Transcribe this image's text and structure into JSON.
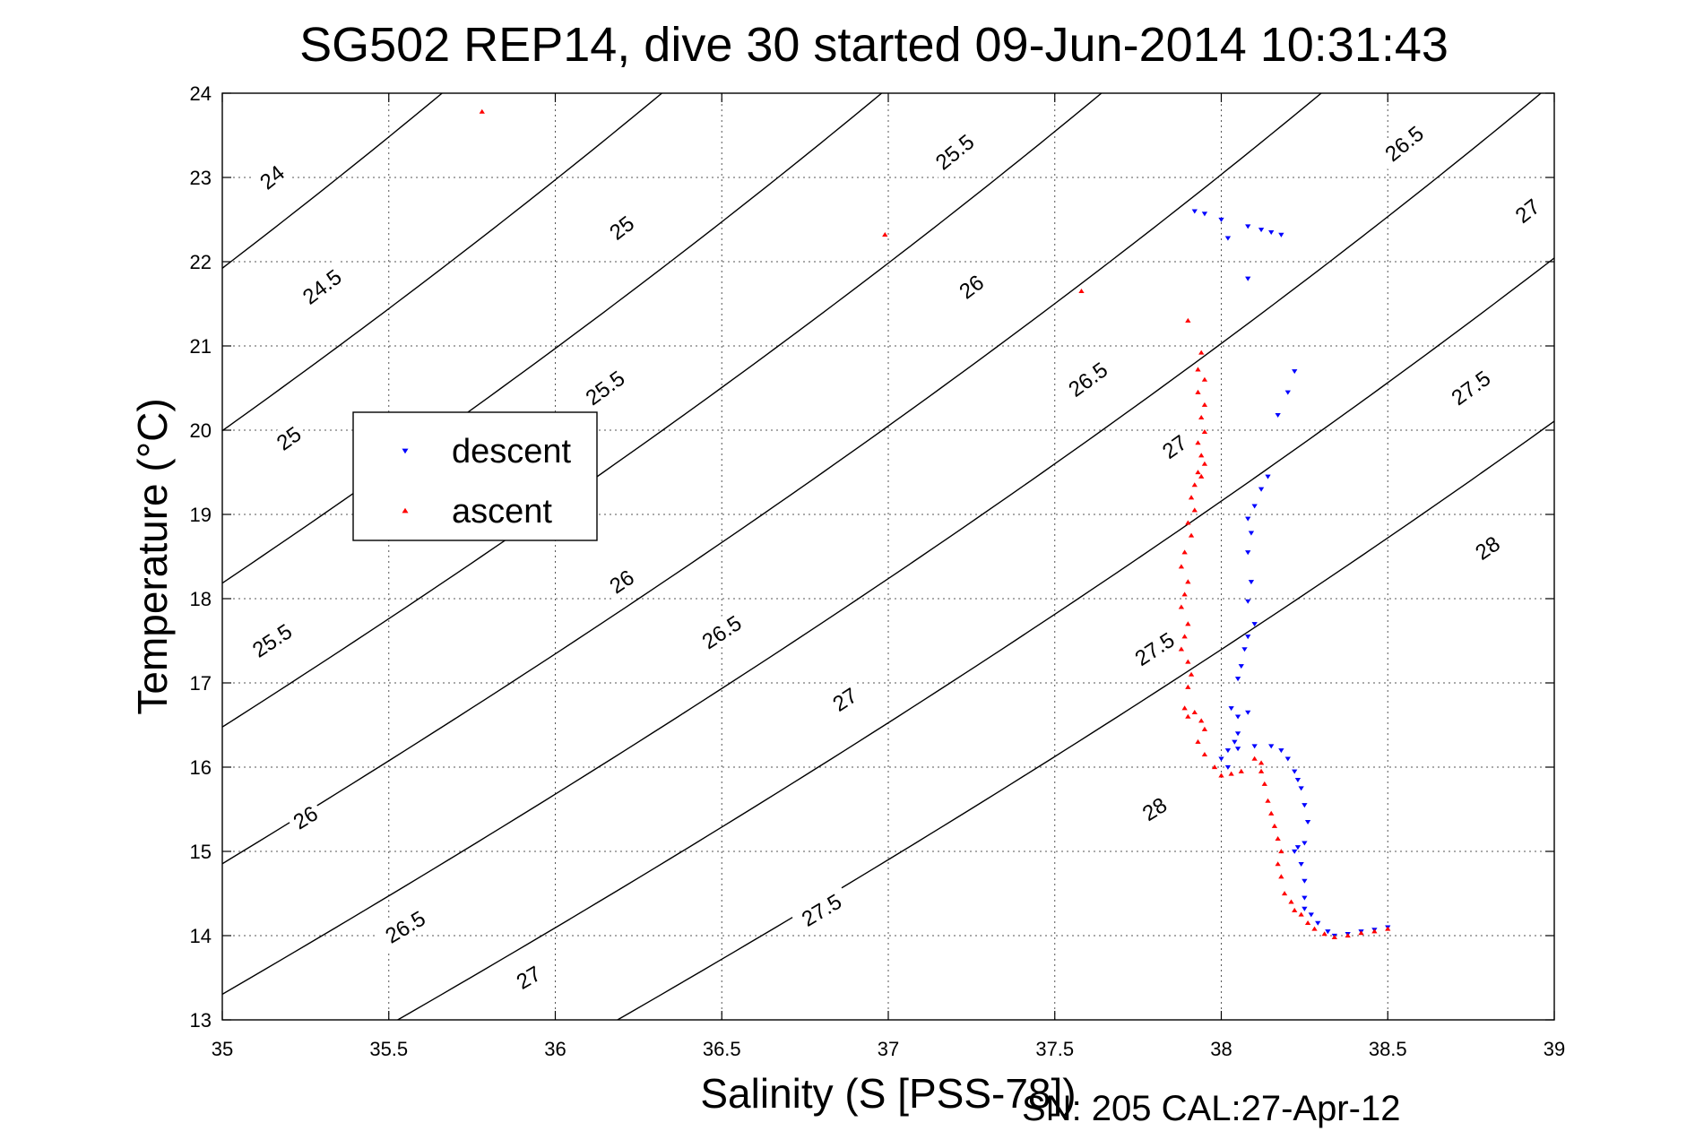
{
  "chart_data": {
    "type": "scatter",
    "title": "SG502 REP14, dive 30 started 09-Jun-2014 10:31:43",
    "xlabel": "Salinity (S [PSS-78])",
    "ylabel": "Temperature (°C)",
    "xlim": [
      35,
      39
    ],
    "ylim": [
      13,
      24
    ],
    "xticks": [
      "35",
      "35.5",
      "36",
      "36.5",
      "37",
      "37.5",
      "38",
      "38.5",
      "39"
    ],
    "yticks": [
      "13",
      "14",
      "15",
      "16",
      "17",
      "18",
      "19",
      "20",
      "21",
      "22",
      "23",
      "24"
    ],
    "grid": true,
    "legend_position": "left-center",
    "footer": "SN: 205  CAL:27-Apr-12",
    "isopycnals": [
      {
        "label": "24",
        "label_text": "24",
        "s_at_T24": 35.0,
        "label_pos": [
          35.15,
          23.0
        ]
      },
      {
        "label": "24.5",
        "label_text": "24.5",
        "s_at_T24": 35.66,
        "label_pos": [
          35.3,
          21.7
        ]
      },
      {
        "label": "25",
        "label_text": "25",
        "s_at_T24": 36.32,
        "label_pos": [
          35.2,
          19.9
        ]
      },
      {
        "label": "25",
        "label_text": "25",
        "s_at_T24": 36.32,
        "label_pos": [
          36.2,
          22.4
        ]
      },
      {
        "label": "25.5",
        "label_text": "25.5",
        "s_at_T24": 36.98,
        "label_pos": [
          35.15,
          17.5
        ]
      },
      {
        "label": "25.5",
        "label_text": "25.5",
        "s_at_T24": 36.98,
        "label_pos": [
          36.15,
          20.5
        ]
      },
      {
        "label": "25.5",
        "label_text": "25.5",
        "s_at_T24": 36.98,
        "label_pos": [
          37.2,
          23.3
        ]
      },
      {
        "label": "26",
        "label_text": "26",
        "s_at_T24": 37.64,
        "label_pos": [
          35.25,
          15.4
        ]
      },
      {
        "label": "26",
        "label_text": "26",
        "s_at_T24": 37.64,
        "label_pos": [
          36.2,
          18.2
        ]
      },
      {
        "label": "26",
        "label_text": "26",
        "s_at_T24": 37.64,
        "label_pos": [
          37.25,
          21.7
        ]
      },
      {
        "label": "26.5",
        "label_text": "26.5",
        "s_at_T24": 38.3,
        "label_pos": [
          35.55,
          14.1
        ]
      },
      {
        "label": "26.5",
        "label_text": "26.5",
        "s_at_T24": 38.3,
        "label_pos": [
          36.5,
          17.6
        ]
      },
      {
        "label": "26.5",
        "label_text": "26.5",
        "s_at_T24": 38.3,
        "label_pos": [
          37.6,
          20.6
        ]
      },
      {
        "label": "26.5",
        "label_text": "26.5",
        "s_at_T24": 38.3,
        "label_pos": [
          38.55,
          23.4
        ]
      },
      {
        "label": "27",
        "label_text": "27",
        "s_at_T24": 38.96,
        "label_pos": [
          35.92,
          13.5
        ]
      },
      {
        "label": "27",
        "label_text": "27",
        "s_at_T24": 38.96,
        "label_pos": [
          36.87,
          16.8
        ]
      },
      {
        "label": "27",
        "label_text": "27",
        "s_at_T24": 38.96,
        "label_pos": [
          37.86,
          19.8
        ]
      },
      {
        "label": "27",
        "label_text": "27",
        "s_at_T24": 38.96,
        "label_pos": [
          38.92,
          22.6
        ]
      },
      {
        "label": "27.5",
        "label_text": "27.5",
        "s_at_T24": 39.62,
        "label_pos": [
          36.8,
          14.3
        ]
      },
      {
        "label": "27.5",
        "label_text": "27.5",
        "s_at_T24": 39.62,
        "label_pos": [
          37.8,
          17.4
        ]
      },
      {
        "label": "27.5",
        "label_text": "27.5",
        "s_at_T24": 39.62,
        "label_pos": [
          38.75,
          20.5
        ]
      },
      {
        "label": "28",
        "label_text": "28",
        "s_at_T24": 40.28,
        "label_pos": [
          37.8,
          15.5
        ]
      },
      {
        "label": "28",
        "label_text": "28",
        "s_at_T24": 40.28,
        "label_pos": [
          38.8,
          18.6
        ]
      }
    ],
    "series": [
      {
        "name": "descent",
        "color": "#0000ff",
        "marker": "triangle-down",
        "points": [
          [
            37.92,
            22.6
          ],
          [
            37.95,
            22.57
          ],
          [
            38.0,
            22.5
          ],
          [
            38.08,
            22.42
          ],
          [
            38.02,
            22.28
          ],
          [
            38.12,
            22.38
          ],
          [
            38.15,
            22.35
          ],
          [
            38.18,
            22.32
          ],
          [
            38.08,
            21.8
          ],
          [
            38.22,
            20.7
          ],
          [
            38.2,
            20.45
          ],
          [
            38.17,
            20.18
          ],
          [
            38.14,
            19.45
          ],
          [
            38.12,
            19.3
          ],
          [
            38.1,
            19.1
          ],
          [
            38.08,
            18.95
          ],
          [
            38.09,
            18.78
          ],
          [
            38.08,
            18.55
          ],
          [
            38.09,
            18.2
          ],
          [
            38.08,
            17.97
          ],
          [
            38.1,
            17.7
          ],
          [
            38.08,
            17.55
          ],
          [
            38.07,
            17.4
          ],
          [
            38.06,
            17.2
          ],
          [
            38.05,
            17.05
          ],
          [
            38.03,
            16.7
          ],
          [
            38.05,
            16.6
          ],
          [
            38.08,
            16.65
          ],
          [
            38.05,
            16.4
          ],
          [
            38.04,
            16.3
          ],
          [
            38.02,
            16.2
          ],
          [
            38.0,
            16.1
          ],
          [
            38.02,
            16.0
          ],
          [
            38.05,
            16.22
          ],
          [
            38.1,
            16.25
          ],
          [
            38.15,
            16.25
          ],
          [
            38.18,
            16.2
          ],
          [
            38.2,
            16.1
          ],
          [
            38.22,
            15.95
          ],
          [
            38.23,
            15.85
          ],
          [
            38.24,
            15.75
          ],
          [
            38.25,
            15.55
          ],
          [
            38.26,
            15.35
          ],
          [
            38.25,
            15.1
          ],
          [
            38.23,
            15.05
          ],
          [
            38.22,
            15.0
          ],
          [
            38.24,
            14.85
          ],
          [
            38.25,
            14.65
          ],
          [
            38.25,
            14.45
          ],
          [
            38.25,
            14.32
          ],
          [
            38.27,
            14.25
          ],
          [
            38.29,
            14.15
          ],
          [
            38.32,
            14.05
          ],
          [
            38.34,
            14.0
          ],
          [
            38.38,
            14.02
          ],
          [
            38.42,
            14.05
          ],
          [
            38.46,
            14.07
          ],
          [
            38.5,
            14.1
          ]
        ]
      },
      {
        "name": "ascent",
        "color": "#ff0000",
        "marker": "triangle-up",
        "points": [
          [
            35.78,
            23.78
          ],
          [
            36.99,
            22.32
          ],
          [
            37.58,
            21.65
          ],
          [
            37.9,
            21.3
          ],
          [
            37.94,
            20.92
          ],
          [
            37.93,
            20.72
          ],
          [
            37.95,
            20.6
          ],
          [
            37.93,
            20.45
          ],
          [
            37.95,
            20.3
          ],
          [
            37.94,
            20.15
          ],
          [
            37.95,
            19.98
          ],
          [
            37.93,
            19.85
          ],
          [
            37.94,
            19.7
          ],
          [
            37.95,
            19.6
          ],
          [
            37.93,
            19.5
          ],
          [
            37.94,
            19.45
          ],
          [
            37.92,
            19.35
          ],
          [
            37.91,
            19.2
          ],
          [
            37.92,
            19.05
          ],
          [
            37.9,
            18.9
          ],
          [
            37.91,
            18.75
          ],
          [
            37.89,
            18.55
          ],
          [
            37.88,
            18.38
          ],
          [
            37.9,
            18.2
          ],
          [
            37.89,
            18.05
          ],
          [
            37.88,
            17.9
          ],
          [
            37.9,
            17.7
          ],
          [
            37.89,
            17.55
          ],
          [
            37.88,
            17.4
          ],
          [
            37.9,
            17.25
          ],
          [
            37.91,
            17.1
          ],
          [
            37.9,
            16.95
          ],
          [
            37.89,
            16.7
          ],
          [
            37.9,
            16.6
          ],
          [
            37.92,
            16.65
          ],
          [
            37.94,
            16.55
          ],
          [
            37.95,
            16.45
          ],
          [
            37.93,
            16.3
          ],
          [
            37.95,
            16.15
          ],
          [
            37.98,
            16.0
          ],
          [
            38.0,
            15.9
          ],
          [
            38.03,
            15.92
          ],
          [
            38.06,
            15.95
          ],
          [
            38.1,
            16.1
          ],
          [
            38.12,
            16.05
          ],
          [
            38.12,
            15.95
          ],
          [
            38.13,
            15.8
          ],
          [
            38.14,
            15.6
          ],
          [
            38.15,
            15.45
          ],
          [
            38.16,
            15.3
          ],
          [
            38.17,
            15.15
          ],
          [
            38.18,
            15.0
          ],
          [
            38.17,
            14.85
          ],
          [
            38.18,
            14.7
          ],
          [
            38.19,
            14.5
          ],
          [
            38.21,
            14.4
          ],
          [
            38.22,
            14.3
          ],
          [
            38.24,
            14.25
          ],
          [
            38.26,
            14.15
          ],
          [
            38.28,
            14.08
          ],
          [
            38.31,
            14.02
          ],
          [
            38.34,
            13.98
          ],
          [
            38.38,
            14.0
          ],
          [
            38.42,
            14.03
          ],
          [
            38.46,
            14.05
          ],
          [
            38.5,
            14.08
          ]
        ]
      }
    ]
  }
}
